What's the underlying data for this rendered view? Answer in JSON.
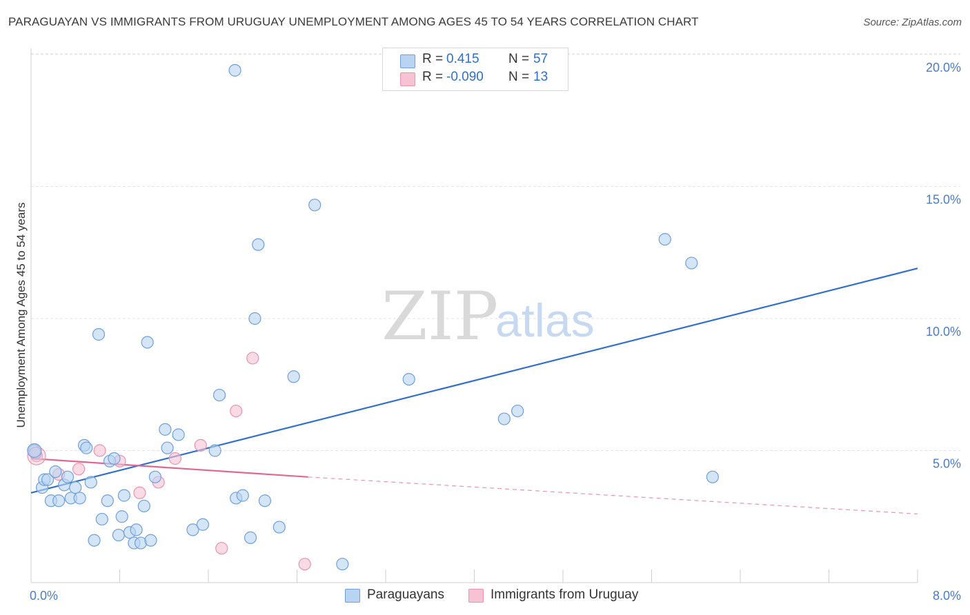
{
  "title": "PARAGUAYAN VS IMMIGRANTS FROM URUGUAY UNEMPLOYMENT AMONG AGES 45 TO 54 YEARS CORRELATION CHART",
  "source": "Source: ZipAtlas.com",
  "watermark": {
    "zip": "ZIP",
    "atlas": "atlas"
  },
  "colors": {
    "blue": "#2e6fd0",
    "blue_fill": "#b9d3f3",
    "blue_stroke": "#6f9fdc",
    "pink": "#e0678f",
    "pink_fill": "#f7c3d3",
    "pink_stroke": "#e893ae",
    "grid": "#e4e4e4",
    "tick_label": "#4a7cc7"
  },
  "legend_top": {
    "rows": [
      {
        "r_label": "R =",
        "r_value": "0.415",
        "n_label": "N =",
        "n_value": "57",
        "color": "blue"
      },
      {
        "r_label": "R =",
        "r_value": "-0.090",
        "n_label": "N =",
        "n_value": "13",
        "color": "pink"
      }
    ]
  },
  "legend_bottom": {
    "items": [
      {
        "label": "Paraguayans",
        "color": "blue"
      },
      {
        "label": "Immigrants from Uruguay",
        "color": "pink"
      }
    ]
  },
  "chart_data": {
    "type": "scatter",
    "title": "PARAGUAYAN VS IMMIGRANTS FROM URUGUAY UNEMPLOYMENT AMONG AGES 45 TO 54 YEARS CORRELATION CHART",
    "xlabel": "",
    "ylabel": "Unemployment Among Ages 45 to 54 years",
    "xlim": [
      0,
      8
    ],
    "ylim": [
      0,
      20.5
    ],
    "x_tick_labels": [
      {
        "value": 0,
        "label": "0.0%"
      },
      {
        "value": 8,
        "label": "8.0%"
      }
    ],
    "y_tick_labels": [
      {
        "value": 5,
        "label": "5.0%"
      },
      {
        "value": 10,
        "label": "10.0%"
      },
      {
        "value": 15,
        "label": "15.0%"
      },
      {
        "value": 20,
        "label": "20.0%"
      }
    ],
    "x_ticks": [
      0,
      0.8,
      1.6,
      2.4,
      3.2,
      4.0,
      4.8,
      5.6,
      6.4,
      7.2,
      8.0
    ],
    "grid": true,
    "series": [
      {
        "name": "Paraguayans",
        "color": "blue",
        "points": [
          [
            0.03,
            5.0
          ],
          [
            0.04,
            4.9
          ],
          [
            0.1,
            3.6
          ],
          [
            0.12,
            3.9
          ],
          [
            0.15,
            3.9
          ],
          [
            0.18,
            3.1
          ],
          [
            0.22,
            4.2
          ],
          [
            0.25,
            3.1
          ],
          [
            0.3,
            3.7
          ],
          [
            0.33,
            4.0
          ],
          [
            0.36,
            3.2
          ],
          [
            0.4,
            3.6
          ],
          [
            0.44,
            3.2
          ],
          [
            0.48,
            5.2
          ],
          [
            0.5,
            5.1
          ],
          [
            0.54,
            3.8
          ],
          [
            0.57,
            1.6
          ],
          [
            0.61,
            9.4
          ],
          [
            0.64,
            2.4
          ],
          [
            0.69,
            3.1
          ],
          [
            0.71,
            4.6
          ],
          [
            0.75,
            4.7
          ],
          [
            0.79,
            1.8
          ],
          [
            0.82,
            2.5
          ],
          [
            0.84,
            3.3
          ],
          [
            0.89,
            1.9
          ],
          [
            0.93,
            1.5
          ],
          [
            0.95,
            2.0
          ],
          [
            0.99,
            1.5
          ],
          [
            1.02,
            2.9
          ],
          [
            1.05,
            9.1
          ],
          [
            1.08,
            1.6
          ],
          [
            1.12,
            4.0
          ],
          [
            1.21,
            5.8
          ],
          [
            1.23,
            5.1
          ],
          [
            1.33,
            5.6
          ],
          [
            1.46,
            2.0
          ],
          [
            1.55,
            2.2
          ],
          [
            1.66,
            5.0
          ],
          [
            1.7,
            7.1
          ],
          [
            1.84,
            19.4
          ],
          [
            1.85,
            3.2
          ],
          [
            1.91,
            3.3
          ],
          [
            1.98,
            1.7
          ],
          [
            2.02,
            10.0
          ],
          [
            2.05,
            12.8
          ],
          [
            2.11,
            3.1
          ],
          [
            2.24,
            2.1
          ],
          [
            2.37,
            7.8
          ],
          [
            2.56,
            14.3
          ],
          [
            2.81,
            0.7
          ],
          [
            3.41,
            7.7
          ],
          [
            4.27,
            6.2
          ],
          [
            4.39,
            6.5
          ],
          [
            5.72,
            13.0
          ],
          [
            5.96,
            12.1
          ],
          [
            6.15,
            4.0
          ]
        ],
        "trend": {
          "x": [
            0,
            8
          ],
          "y": [
            3.4,
            11.9
          ]
        }
      },
      {
        "name": "Immigrants from Uruguay",
        "color": "pink",
        "points": [
          [
            0.05,
            4.8
          ],
          [
            0.25,
            4.1
          ],
          [
            0.43,
            4.3
          ],
          [
            0.62,
            5.0
          ],
          [
            0.8,
            4.6
          ],
          [
            0.98,
            3.4
          ],
          [
            1.15,
            3.8
          ],
          [
            1.3,
            4.7
          ],
          [
            1.53,
            5.2
          ],
          [
            1.72,
            1.3
          ],
          [
            1.85,
            6.5
          ],
          [
            2.0,
            8.5
          ],
          [
            2.47,
            0.7
          ]
        ],
        "trend": {
          "x": [
            0,
            2.5
          ],
          "y": [
            4.7,
            4.0
          ]
        },
        "trend_dashed": {
          "x": [
            2.5,
            8
          ],
          "y": [
            4.0,
            2.6
          ]
        }
      }
    ]
  }
}
